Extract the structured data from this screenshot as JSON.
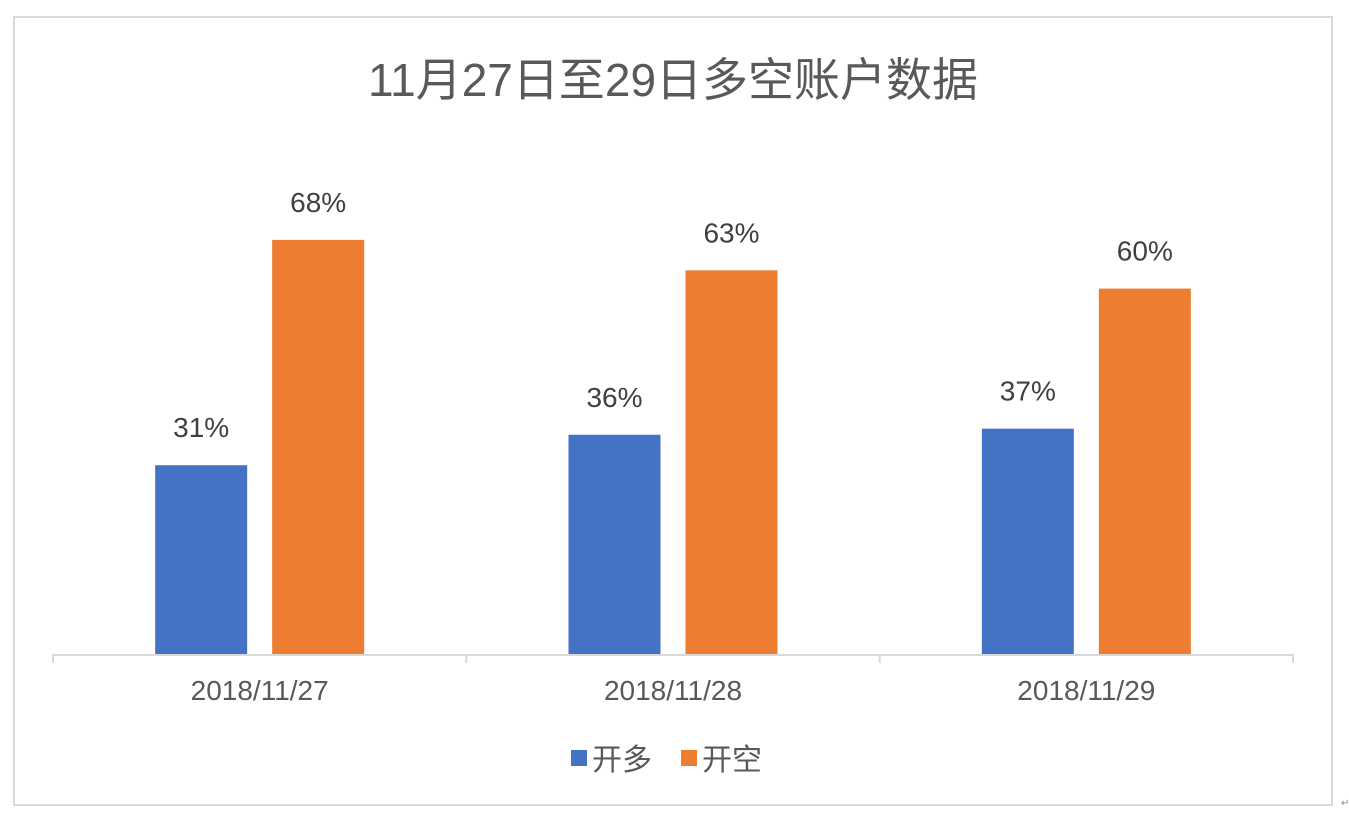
{
  "chart_data": {
    "type": "bar",
    "title": "11月27日至29日多空账户数据",
    "categories": [
      "2018/11/27",
      "2018/11/28",
      "2018/11/29"
    ],
    "series": [
      {
        "name": "开多",
        "values": [
          31,
          36,
          37
        ],
        "labels": [
          "31%",
          "36%",
          "37%"
        ],
        "color": "#4472c4"
      },
      {
        "name": "开空",
        "values": [
          68,
          63,
          60
        ],
        "labels": [
          "68%",
          "63%",
          "60%"
        ],
        "color": "#ed7d31"
      }
    ],
    "ylim": [
      0,
      100
    ],
    "grid": false,
    "legend_position": "bottom"
  },
  "corner_mark": "↵"
}
